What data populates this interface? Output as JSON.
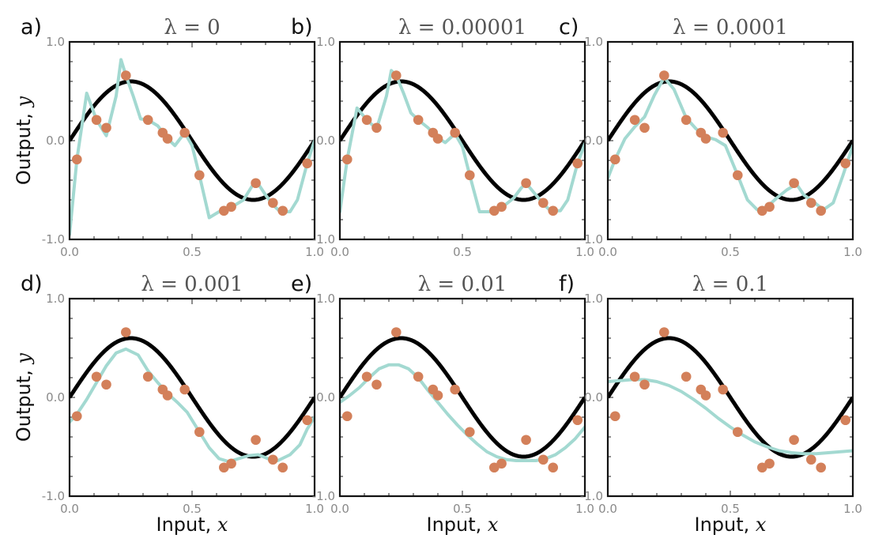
{
  "chart_data": {
    "type": "line",
    "x_tick_labels": [
      "0.0",
      "0.5",
      "1.0"
    ],
    "y_tick_labels": [
      "-1.0",
      "0.0",
      "1.0"
    ],
    "xlim": [
      0,
      1
    ],
    "ylim": [
      -1,
      1
    ],
    "xlabel": "Input, ",
    "xlabel_var": "x",
    "ylabel": "Output, ",
    "ylabel_var": "y",
    "true_function": "sin(2πx)·0.6",
    "colors": {
      "true": "#000000",
      "fit": "#a3d9d1",
      "data": "#d3805a"
    },
    "data_points": {
      "x": [
        0.03,
        0.11,
        0.15,
        0.23,
        0.32,
        0.38,
        0.4,
        0.47,
        0.53,
        0.63,
        0.66,
        0.76,
        0.83,
        0.87,
        0.97
      ],
      "y": [
        -0.19,
        0.21,
        0.13,
        0.66,
        0.21,
        0.08,
        0.02,
        0.08,
        -0.35,
        -0.71,
        -0.67,
        -0.43,
        -0.63,
        -0.71,
        -0.23
      ]
    },
    "panels": [
      {
        "letter": "a)",
        "title": "λ = 0",
        "fit": {
          "x": [
            0.0,
            0.03,
            0.07,
            0.11,
            0.15,
            0.19,
            0.21,
            0.23,
            0.26,
            0.29,
            0.32,
            0.36,
            0.4,
            0.43,
            0.47,
            0.5,
            0.53,
            0.57,
            0.61,
            0.64,
            0.67,
            0.71,
            0.74,
            0.76,
            0.8,
            0.83,
            0.86,
            0.9,
            0.93,
            0.97,
            1.0
          ],
          "y": [
            -0.95,
            -0.19,
            0.48,
            0.21,
            0.05,
            0.45,
            0.82,
            0.66,
            0.45,
            0.22,
            0.21,
            0.15,
            0.02,
            -0.05,
            0.08,
            -0.05,
            -0.35,
            -0.78,
            -0.72,
            -0.71,
            -0.66,
            -0.6,
            -0.48,
            -0.4,
            -0.55,
            -0.65,
            -0.72,
            -0.72,
            -0.6,
            -0.23,
            0.0
          ]
        }
      },
      {
        "letter": "b)",
        "title": "λ = 0.00001",
        "fit": {
          "x": [
            0.0,
            0.03,
            0.07,
            0.11,
            0.15,
            0.19,
            0.21,
            0.23,
            0.26,
            0.29,
            0.32,
            0.36,
            0.4,
            0.43,
            0.47,
            0.5,
            0.53,
            0.57,
            0.61,
            0.64,
            0.67,
            0.71,
            0.74,
            0.76,
            0.8,
            0.83,
            0.86,
            0.9,
            0.93,
            0.97,
            1.0
          ],
          "y": [
            -0.72,
            -0.19,
            0.33,
            0.21,
            0.12,
            0.45,
            0.71,
            0.66,
            0.48,
            0.28,
            0.21,
            0.13,
            0.03,
            -0.02,
            0.07,
            -0.06,
            -0.35,
            -0.72,
            -0.72,
            -0.71,
            -0.66,
            -0.58,
            -0.48,
            -0.43,
            -0.55,
            -0.64,
            -0.71,
            -0.71,
            -0.6,
            -0.23,
            -0.03
          ]
        }
      },
      {
        "letter": "c)",
        "title": "λ = 0.0001",
        "fit": {
          "x": [
            0.0,
            0.03,
            0.07,
            0.11,
            0.15,
            0.19,
            0.23,
            0.27,
            0.32,
            0.36,
            0.4,
            0.44,
            0.48,
            0.53,
            0.57,
            0.61,
            0.65,
            0.69,
            0.73,
            0.77,
            0.8,
            0.84,
            0.88,
            0.92,
            0.96,
            1.0
          ],
          "y": [
            -0.38,
            -0.19,
            0.02,
            0.14,
            0.24,
            0.46,
            0.64,
            0.52,
            0.23,
            0.12,
            0.04,
            0.01,
            -0.05,
            -0.35,
            -0.6,
            -0.7,
            -0.67,
            -0.58,
            -0.5,
            -0.44,
            -0.55,
            -0.62,
            -0.7,
            -0.63,
            -0.35,
            -0.05
          ]
        }
      },
      {
        "letter": "d)",
        "title": "λ = 0.001",
        "fit": {
          "x": [
            0.0,
            0.03,
            0.07,
            0.11,
            0.15,
            0.19,
            0.23,
            0.28,
            0.32,
            0.36,
            0.4,
            0.44,
            0.48,
            0.53,
            0.57,
            0.61,
            0.65,
            0.69,
            0.73,
            0.77,
            0.81,
            0.85,
            0.9,
            0.94,
            0.97,
            1.0
          ],
          "y": [
            -0.25,
            -0.17,
            -0.02,
            0.15,
            0.32,
            0.45,
            0.49,
            0.43,
            0.27,
            0.15,
            0.04,
            -0.05,
            -0.15,
            -0.35,
            -0.51,
            -0.62,
            -0.65,
            -0.62,
            -0.59,
            -0.58,
            -0.62,
            -0.64,
            -0.58,
            -0.48,
            -0.32,
            -0.2
          ]
        }
      },
      {
        "letter": "e)",
        "title": "λ = 0.01",
        "fit": {
          "x": [
            0.0,
            0.04,
            0.08,
            0.12,
            0.16,
            0.2,
            0.24,
            0.28,
            0.32,
            0.36,
            0.4,
            0.44,
            0.48,
            0.52,
            0.56,
            0.6,
            0.64,
            0.68,
            0.72,
            0.76,
            0.8,
            0.84,
            0.88,
            0.92,
            0.96,
            1.0
          ],
          "y": [
            -0.05,
            0.02,
            0.1,
            0.2,
            0.29,
            0.33,
            0.33,
            0.29,
            0.2,
            0.07,
            -0.05,
            -0.17,
            -0.28,
            -0.38,
            -0.47,
            -0.55,
            -0.6,
            -0.63,
            -0.64,
            -0.64,
            -0.64,
            -0.62,
            -0.58,
            -0.51,
            -0.42,
            -0.3
          ]
        }
      },
      {
        "letter": "f)",
        "title": "λ = 0.1",
        "fit": {
          "x": [
            0.0,
            0.05,
            0.1,
            0.15,
            0.2,
            0.25,
            0.3,
            0.35,
            0.4,
            0.45,
            0.5,
            0.55,
            0.6,
            0.65,
            0.7,
            0.75,
            0.8,
            0.85,
            0.9,
            0.95,
            1.0
          ],
          "y": [
            0.16,
            0.17,
            0.18,
            0.18,
            0.16,
            0.12,
            0.06,
            -0.02,
            -0.11,
            -0.21,
            -0.3,
            -0.38,
            -0.45,
            -0.5,
            -0.54,
            -0.56,
            -0.57,
            -0.57,
            -0.56,
            -0.55,
            -0.54
          ]
        }
      }
    ]
  }
}
